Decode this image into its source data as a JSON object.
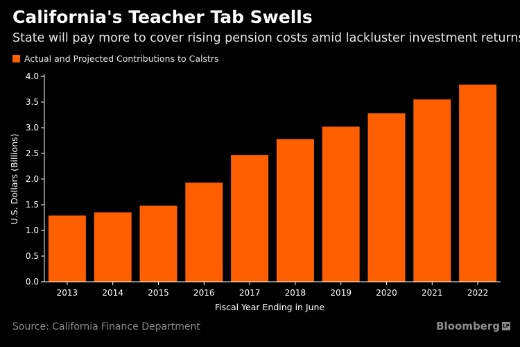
{
  "header": {
    "title": "California's Teacher Tab Swells",
    "subtitle": "State will pay more to cover rising pension costs amid lackluster investment returns"
  },
  "footer": {
    "source": "Source: California Finance Department",
    "brand": "Bloomberg",
    "brand_mark": "LP"
  },
  "colors": {
    "background": "#000000",
    "bar": "#ff5f00",
    "axis": "#ffffff",
    "muted_text": "#8c8c8c"
  },
  "chart_data": {
    "type": "bar",
    "title": "California's Teacher Tab Swells",
    "subtitle": "State will pay more to cover rising pension costs amid lackluster investment returns",
    "categories": [
      "2013",
      "2014",
      "2015",
      "2016",
      "2017",
      "2018",
      "2019",
      "2020",
      "2021",
      "2022"
    ],
    "series": [
      {
        "name": "Actual and Projected Contributions to Calstrs",
        "values": [
          1.29,
          1.35,
          1.48,
          1.93,
          2.47,
          2.78,
          3.02,
          3.28,
          3.55,
          3.84
        ]
      }
    ],
    "xlabel": "Fiscal Year Ending in June",
    "ylabel": "U.S. Dollars (Billions)",
    "ylim": [
      0,
      4
    ],
    "yticks": [
      "0.0",
      "0.5",
      "1.0",
      "1.5",
      "2.0",
      "2.5",
      "3.0",
      "3.5",
      "4.0"
    ],
    "grid": false,
    "legend": "top-left"
  }
}
